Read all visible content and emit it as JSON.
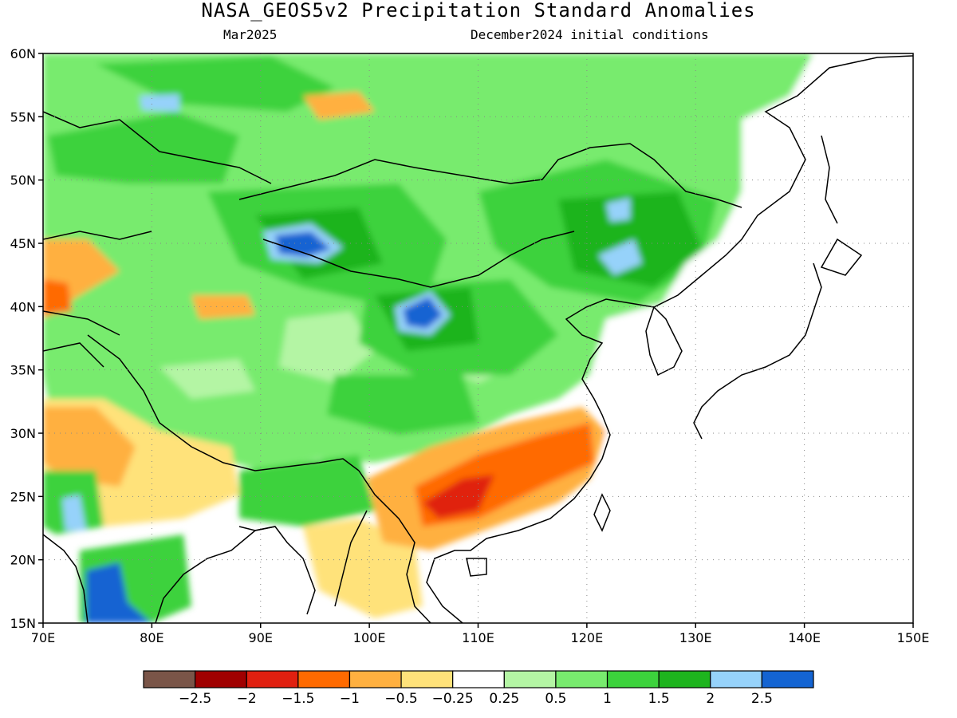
{
  "title": "NASA_GEOS5v2 Precipitation Standard Anomalies",
  "subtitle_left": "Mar2025",
  "subtitle_right": "December2024 initial conditions",
  "map": {
    "lon_range": [
      70,
      150
    ],
    "lat_range": [
      15,
      60
    ],
    "lon_ticks": [
      {
        "value": 70,
        "label": "70E"
      },
      {
        "value": 80,
        "label": "80E"
      },
      {
        "value": 90,
        "label": "90E"
      },
      {
        "value": 100,
        "label": "100E"
      },
      {
        "value": 110,
        "label": "110E"
      },
      {
        "value": 120,
        "label": "120E"
      },
      {
        "value": 130,
        "label": "130E"
      },
      {
        "value": 140,
        "label": "140E"
      },
      {
        "value": 150,
        "label": "150E"
      }
    ],
    "lat_ticks": [
      {
        "value": 15,
        "label": "15N"
      },
      {
        "value": 20,
        "label": "20N"
      },
      {
        "value": 25,
        "label": "25N"
      },
      {
        "value": 30,
        "label": "30N"
      },
      {
        "value": 35,
        "label": "35N"
      },
      {
        "value": 40,
        "label": "40N"
      },
      {
        "value": 45,
        "label": "45N"
      },
      {
        "value": 50,
        "label": "50N"
      },
      {
        "value": 55,
        "label": "55N"
      },
      {
        "value": 60,
        "label": "60N"
      }
    ],
    "grid": true
  },
  "colorbar": {
    "colors": [
      "#7a5548",
      "#a00000",
      "#e02010",
      "#ff6a00",
      "#ffb040",
      "#ffe27a",
      "#ffffff",
      "#b4f5a4",
      "#78eb6e",
      "#3cd23c",
      "#1eb41e",
      "#96d2fa",
      "#1464d2"
    ],
    "labels": [
      "−2.5",
      "−2",
      "−1.5",
      "−1",
      "−0.5",
      "−0.25",
      "0.25",
      "0.5",
      "1",
      "1.5",
      "2",
      "2.5"
    ]
  },
  "regions": [
    {
      "kind": "wet",
      "level": 0.5,
      "note": "broad wet anomaly over Central Asia, Mongolia and China",
      "lon": [
        70,
        135
      ],
      "lat": [
        32,
        60
      ]
    },
    {
      "kind": "wet",
      "level": 2.5,
      "note": "strong wet anomaly over northwest China",
      "lon": [
        87,
        96
      ],
      "lat": [
        43,
        47
      ]
    },
    {
      "kind": "wet",
      "level": 2.5,
      "note": "strong wet anomaly over north-central China",
      "lon": [
        102,
        107
      ],
      "lat": [
        38,
        41
      ]
    },
    {
      "kind": "wet",
      "level": 2.5,
      "note": "strong wet anomaly over southern India",
      "lon": [
        74,
        80
      ],
      "lat": [
        15,
        19
      ]
    },
    {
      "kind": "wet",
      "level": 2.0,
      "note": "wet anomaly over northeast China",
      "lon": [
        120,
        128
      ],
      "lat": [
        42,
        48
      ]
    },
    {
      "kind": "dry",
      "level": -1.5,
      "note": "dry anomaly over southern China",
      "lon": [
        103,
        121
      ],
      "lat": [
        22,
        31
      ]
    },
    {
      "kind": "dry",
      "level": -0.5,
      "note": "dry anomaly over northern India",
      "lon": [
        70,
        88
      ],
      "lat": [
        24,
        31
      ]
    },
    {
      "kind": "dry",
      "level": -0.5,
      "note": "dry anomaly over Indochina",
      "lon": [
        97,
        106
      ],
      "lat": [
        16,
        24
      ]
    },
    {
      "kind": "dry",
      "level": -1.0,
      "note": "dry anomaly over Kazakhstan",
      "lon": [
        70,
        78
      ],
      "lat": [
        38,
        45
      ]
    }
  ]
}
